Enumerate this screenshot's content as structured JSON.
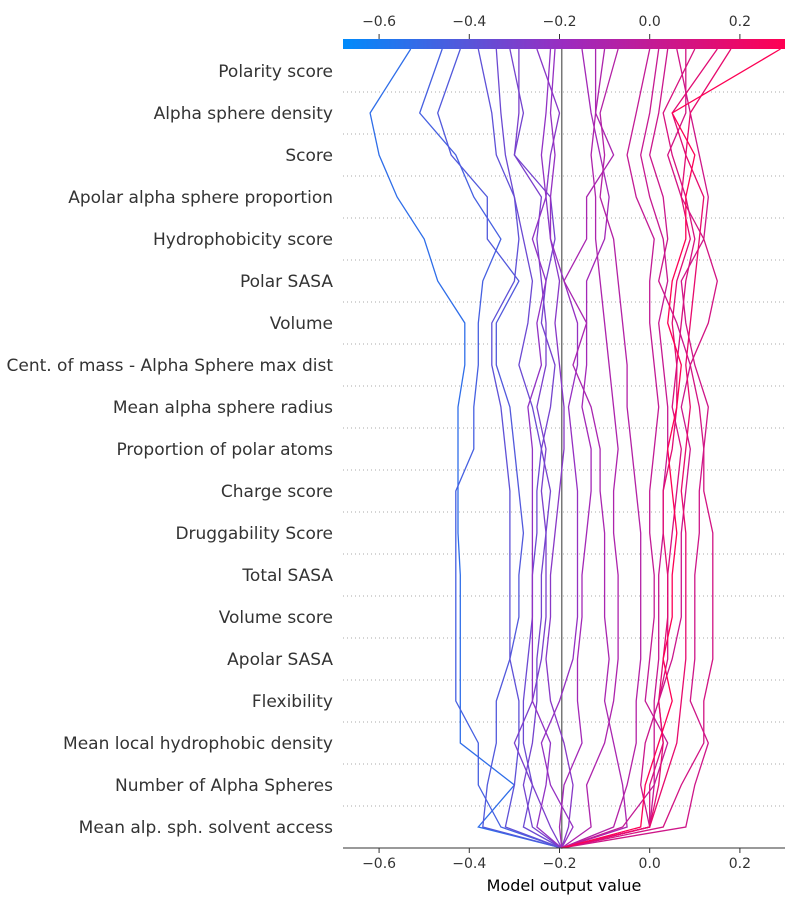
{
  "chart_data": {
    "type": "line",
    "chart_kind": "shap-decision-plot",
    "xlabel": "Model output value",
    "xlim": [
      -0.68,
      0.3
    ],
    "xticks": [
      "−0.6",
      "−0.4",
      "−0.2",
      "0.0",
      "0.2"
    ],
    "xtick_values": [
      -0.6,
      -0.4,
      -0.2,
      0.0,
      0.2
    ],
    "base_value": -0.195,
    "features": [
      "Polarity score",
      "Alpha sphere density",
      "Score",
      "Apolar alpha sphere proportion",
      "Hydrophobicity score",
      "Polar SASA",
      "Volume",
      "Cent. of mass - Alpha Sphere max dist",
      "Mean alpha sphere radius",
      "Proportion of polar atoms",
      "Charge score",
      "Druggability Score",
      "Total SASA",
      "Volume score",
      "Apolar SASA",
      "Flexibility",
      "Mean local hydrophobic density",
      "Number of Alpha Spheres",
      "Mean alp. sph. solvent access"
    ],
    "colorbar": {
      "from": "#008bfb",
      "mid": "#9b2cc0",
      "to": "#ff0052"
    },
    "gridlines": "dotted",
    "series": [
      {
        "values": [
          -0.195,
          -0.38,
          -0.3,
          -0.42,
          -0.42,
          -0.42,
          -0.42,
          -0.42,
          -0.425,
          -0.425,
          -0.425,
          -0.425,
          -0.41,
          -0.41,
          -0.47,
          -0.5,
          -0.56,
          -0.6,
          -0.62,
          -0.53
        ]
      },
      {
        "values": [
          -0.195,
          -0.33,
          -0.38,
          -0.38,
          -0.43,
          -0.43,
          -0.43,
          -0.43,
          -0.43,
          -0.43,
          -0.39,
          -0.39,
          -0.38,
          -0.38,
          -0.37,
          -0.33,
          -0.39,
          -0.43,
          -0.51,
          -0.46
        ]
      },
      {
        "values": [
          -0.195,
          -0.37,
          -0.36,
          -0.34,
          -0.34,
          -0.31,
          -0.29,
          -0.29,
          -0.28,
          -0.29,
          -0.3,
          -0.31,
          -0.34,
          -0.34,
          -0.29,
          -0.36,
          -0.36,
          -0.44,
          -0.47,
          -0.42
        ]
      },
      {
        "values": [
          -0.195,
          -0.32,
          -0.3,
          -0.29,
          -0.29,
          -0.31,
          -0.31,
          -0.31,
          -0.31,
          -0.31,
          -0.32,
          -0.33,
          -0.35,
          -0.35,
          -0.3,
          -0.29,
          -0.3,
          -0.34,
          -0.35,
          -0.38
        ]
      },
      {
        "values": [
          -0.195,
          -0.28,
          -0.26,
          -0.28,
          -0.28,
          -0.27,
          -0.26,
          -0.26,
          -0.25,
          -0.25,
          -0.24,
          -0.26,
          -0.29,
          -0.27,
          -0.26,
          -0.28,
          -0.3,
          -0.32,
          -0.33,
          -0.34
        ]
      },
      {
        "values": [
          -0.195,
          -0.22,
          -0.26,
          -0.3,
          -0.26,
          -0.24,
          -0.23,
          -0.23,
          -0.23,
          -0.24,
          -0.23,
          -0.25,
          -0.23,
          -0.23,
          -0.24,
          -0.25,
          -0.24,
          -0.3,
          -0.29,
          -0.29
        ]
      },
      {
        "values": [
          -0.195,
          -0.26,
          -0.28,
          -0.26,
          -0.25,
          -0.25,
          -0.24,
          -0.24,
          -0.23,
          -0.22,
          -0.24,
          -0.22,
          -0.21,
          -0.24,
          -0.23,
          -0.21,
          -0.22,
          -0.3,
          -0.28,
          -0.31
        ]
      },
      {
        "values": [
          -0.195,
          -0.18,
          -0.17,
          -0.19,
          -0.22,
          -0.23,
          -0.22,
          -0.22,
          -0.21,
          -0.2,
          -0.19,
          -0.19,
          -0.2,
          -0.21,
          -0.2,
          -0.22,
          -0.23,
          -0.22,
          -0.2,
          -0.25
        ]
      },
      {
        "values": [
          -0.195,
          -0.25,
          -0.23,
          -0.22,
          -0.26,
          -0.26,
          -0.26,
          -0.26,
          -0.26,
          -0.26,
          -0.26,
          -0.27,
          -0.24,
          -0.25,
          -0.23,
          -0.26,
          -0.23,
          -0.24,
          -0.23,
          -0.22
        ]
      },
      {
        "values": [
          -0.195,
          -0.17,
          -0.22,
          -0.24,
          -0.2,
          -0.17,
          -0.16,
          -0.16,
          -0.16,
          -0.16,
          -0.17,
          -0.18,
          -0.16,
          -0.16,
          -0.19,
          -0.22,
          -0.22,
          -0.21,
          -0.22,
          -0.21
        ]
      },
      {
        "values": [
          -0.195,
          -0.2,
          -0.19,
          -0.15,
          -0.16,
          -0.16,
          -0.15,
          -0.15,
          -0.14,
          -0.13,
          -0.13,
          -0.15,
          -0.14,
          -0.14,
          -0.14,
          -0.1,
          -0.09,
          -0.11,
          -0.13,
          -0.15
        ]
      },
      {
        "values": [
          -0.195,
          -0.05,
          -0.06,
          -0.08,
          -0.1,
          -0.09,
          -0.1,
          -0.1,
          -0.1,
          -0.11,
          -0.11,
          -0.13,
          -0.17,
          -0.14,
          -0.19,
          -0.14,
          -0.14,
          -0.08,
          -0.12,
          -0.12
        ]
      },
      {
        "values": [
          -0.195,
          -0.13,
          -0.14,
          -0.1,
          -0.08,
          -0.07,
          -0.07,
          -0.07,
          -0.08,
          -0.08,
          -0.07,
          -0.08,
          -0.09,
          -0.1,
          -0.11,
          -0.12,
          -0.12,
          -0.13,
          -0.12,
          -0.1
        ]
      },
      {
        "values": [
          -0.195,
          -0.08,
          -0.05,
          -0.03,
          -0.03,
          -0.02,
          -0.02,
          -0.02,
          -0.02,
          -0.03,
          -0.04,
          -0.05,
          -0.05,
          -0.06,
          -0.07,
          -0.08,
          -0.11,
          -0.1,
          -0.11,
          -0.07
        ]
      },
      {
        "values": [
          -0.195,
          -0.06,
          0.01,
          0.04,
          -0.01,
          0.0,
          0.01,
          0.01,
          0.0,
          0.0,
          0.01,
          0.02,
          0.01,
          0.0,
          0.0,
          0.01,
          -0.03,
          -0.05,
          -0.03,
          0.0
        ]
      },
      {
        "values": [
          -0.195,
          0.0,
          0.01,
          0.01,
          0.01,
          0.02,
          0.02,
          0.02,
          0.03,
          0.03,
          0.04,
          0.04,
          0.03,
          0.02,
          0.04,
          0.03,
          0.0,
          -0.02,
          0.0,
          0.02
        ]
      },
      {
        "values": [
          -0.195,
          0.0,
          -0.02,
          -0.01,
          0.02,
          0.05,
          0.07,
          0.07,
          0.07,
          0.08,
          0.09,
          0.07,
          0.09,
          0.06,
          0.02,
          0.04,
          0.03,
          0.0,
          0.02,
          0.04
        ]
      },
      {
        "values": [
          -0.195,
          0.08,
          0.1,
          0.13,
          0.09,
          0.1,
          0.1,
          0.1,
          0.11,
          0.11,
          0.12,
          0.13,
          0.1,
          0.08,
          0.07,
          0.12,
          0.13,
          0.11,
          0.09,
          0.06
        ]
      },
      {
        "values": [
          -0.195,
          0.03,
          0.07,
          0.12,
          0.12,
          0.14,
          0.14,
          0.14,
          0.14,
          0.12,
          0.12,
          0.11,
          0.09,
          0.13,
          0.15,
          0.12,
          0.07,
          0.04,
          0.08,
          0.08
        ]
      },
      {
        "values": [
          -0.195,
          0.0,
          0.0,
          0.03,
          0.02,
          0.04,
          0.04,
          0.04,
          0.05,
          0.06,
          0.07,
          0.05,
          0.06,
          0.07,
          0.08,
          0.1,
          0.08,
          0.05,
          0.03,
          0.1
        ]
      },
      {
        "values": [
          -0.195,
          0.0,
          0.02,
          0.03,
          0.02,
          0.03,
          0.04,
          0.04,
          0.03,
          0.03,
          0.05,
          0.06,
          0.06,
          0.05,
          0.06,
          0.09,
          0.07,
          0.08,
          0.05,
          0.15
        ]
      },
      {
        "values": [
          -0.195,
          0.0,
          0.03,
          0.06,
          0.07,
          0.08,
          0.08,
          0.08,
          0.08,
          0.07,
          0.08,
          0.09,
          0.08,
          0.09,
          0.1,
          0.11,
          0.12,
          0.08,
          0.09,
          0.18
        ]
      },
      {
        "values": [
          -0.195,
          -0.02,
          -0.01,
          0.02,
          0.05,
          0.03,
          0.05,
          0.05,
          0.06,
          0.05,
          0.04,
          0.06,
          0.07,
          0.04,
          0.05,
          0.08,
          0.08,
          0.1,
          0.05,
          0.29
        ]
      }
    ]
  }
}
